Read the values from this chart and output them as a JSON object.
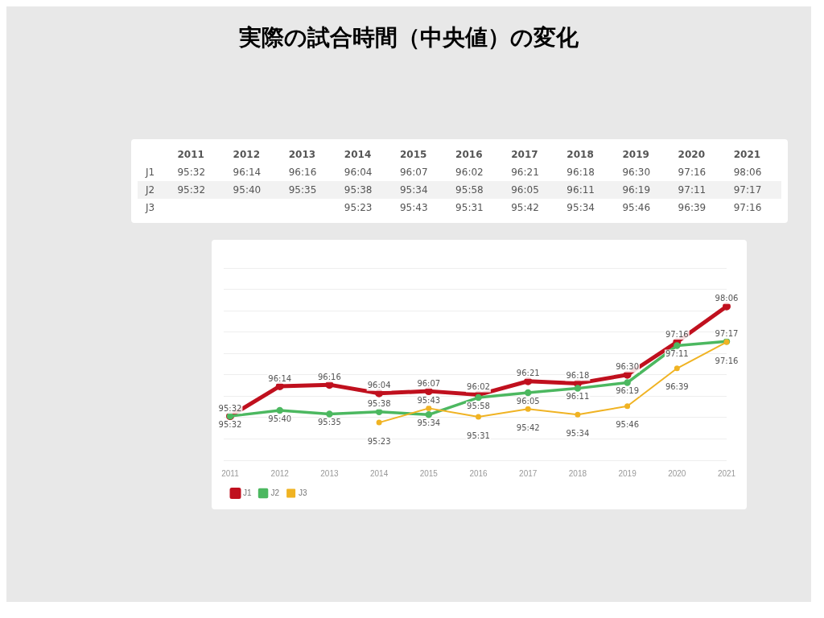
{
  "chart_data": {
    "type": "line",
    "title": "実際の試合時間（中央値）の変化",
    "categories": [
      "2011",
      "2012",
      "2013",
      "2014",
      "2015",
      "2016",
      "2017",
      "2018",
      "2019",
      "2020",
      "2021"
    ],
    "series": [
      {
        "name": "J1",
        "color": "#c0101e",
        "values": [
          95.533,
          96.233,
          96.267,
          96.067,
          96.117,
          96.033,
          96.35,
          96.3,
          96.5,
          97.267,
          98.1
        ],
        "value_labels": [
          "95:32",
          "96:14",
          "96:16",
          "96:04",
          "96:07",
          "96:02",
          "96:21",
          "96:18",
          "96:30",
          "97:16",
          "98:06"
        ]
      },
      {
        "name": "J2",
        "color": "#4cb860",
        "values": [
          95.533,
          95.667,
          95.583,
          95.633,
          95.567,
          95.967,
          96.083,
          96.183,
          96.317,
          97.183,
          97.283
        ],
        "value_labels": [
          "95:32",
          "95:40",
          "95:35",
          "95:38",
          "95:34",
          "95:58",
          "96:05",
          "96:11",
          "96:19",
          "97:11",
          "97:17"
        ]
      },
      {
        "name": "J3",
        "color": "#f0b323",
        "values": [
          null,
          null,
          null,
          95.383,
          95.717,
          95.517,
          95.7,
          95.567,
          95.767,
          96.65,
          97.267
        ],
        "value_labels": [
          null,
          null,
          null,
          "95:23",
          "95:43",
          "95:31",
          "95:42",
          "95:34",
          "95:46",
          "96:39",
          "97:16"
        ]
      }
    ],
    "grid": "y",
    "legend": "bottom left",
    "marker": "circle",
    "tick_labels": "x"
  }
}
